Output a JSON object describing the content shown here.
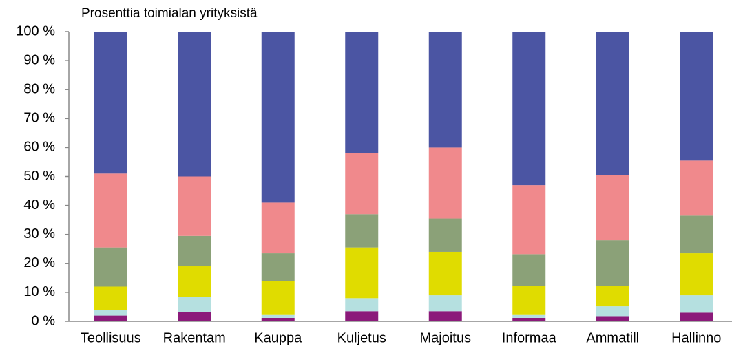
{
  "chart_data": {
    "type": "stacked-bar",
    "title": "Prosenttia toimialan yrityksistä",
    "categories": [
      "Teollisuus",
      "Rakentam",
      "Kauppa",
      "Kuljetus",
      "Majoitus",
      "Informaa",
      "Ammatill",
      "Hallinno"
    ],
    "series": [
      {
        "color": "#8b1a7a",
        "values": [
          2,
          3.2,
          1.2,
          3.5,
          3.5,
          1.2,
          1.8,
          3
        ]
      },
      {
        "color": "#b5e0e0",
        "values": [
          2,
          5.3,
          1,
          4.5,
          5.5,
          1,
          3.4,
          6
        ]
      },
      {
        "color": "#e0dc00",
        "values": [
          8,
          10.5,
          11.8,
          17.5,
          15,
          10,
          7.1,
          14.5
        ]
      },
      {
        "color": "#8ba178",
        "values": [
          13.5,
          10.5,
          9.5,
          11.5,
          11.5,
          11,
          15.7,
          13
        ]
      },
      {
        "color": "#f0898c",
        "values": [
          25.5,
          20.5,
          17.5,
          21,
          24.5,
          23.8,
          22.5,
          19
        ]
      },
      {
        "color": "#4b55a3",
        "values": [
          49,
          50,
          59,
          42,
          40,
          53,
          49.5,
          44.5
        ]
      }
    ],
    "ylim": [
      0,
      100
    ],
    "yticks": [
      {
        "value": 0,
        "label": "0 %"
      },
      {
        "value": 10,
        "label": "10 %"
      },
      {
        "value": 20,
        "label": "20 %"
      },
      {
        "value": 30,
        "label": "30 %"
      },
      {
        "value": 40,
        "label": "40 %"
      },
      {
        "value": 50,
        "label": "50 %"
      },
      {
        "value": 60,
        "label": "60 %"
      },
      {
        "value": 70,
        "label": "70 %"
      },
      {
        "value": 80,
        "label": "80 %"
      },
      {
        "value": 90,
        "label": "90 %"
      },
      {
        "value": 100,
        "label": "100 %"
      }
    ],
    "grid": false
  }
}
